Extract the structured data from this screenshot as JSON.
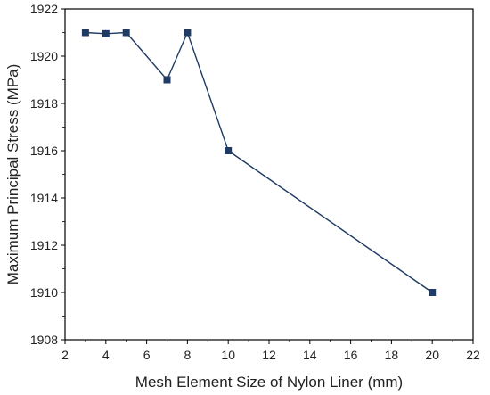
{
  "chart_data": {
    "type": "line",
    "title": "",
    "xlabel": "Mesh Element Size of Nylon Liner (mm)",
    "ylabel": "Maximum Principal Stress (MPa)",
    "xlim": [
      2,
      22
    ],
    "ylim": [
      1908,
      1922
    ],
    "xticks": [
      2,
      4,
      6,
      8,
      10,
      12,
      14,
      16,
      18,
      20,
      22
    ],
    "yticks": [
      1908,
      1910,
      1912,
      1914,
      1916,
      1918,
      1920,
      1922
    ],
    "grid": false,
    "legend": "none",
    "series": [
      {
        "x": [
          3,
          4,
          5,
          7,
          8,
          10,
          20
        ],
        "y": [
          1921.0,
          1920.95,
          1921.0,
          1919.0,
          1921.0,
          1916.0,
          1910.0
        ],
        "color": "#1f3a63",
        "marker": "square"
      }
    ]
  }
}
